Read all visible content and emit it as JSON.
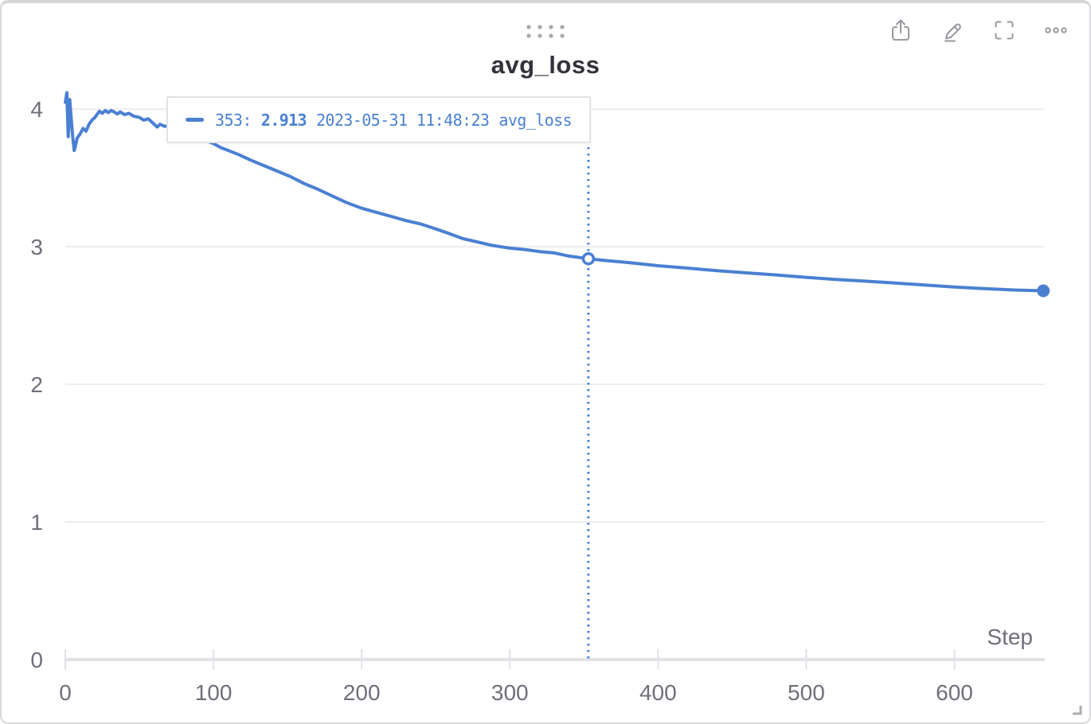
{
  "panel": {
    "title": "avg_loss"
  },
  "toolbar": {
    "icons": [
      "share",
      "edit",
      "fullscreen",
      "more-options"
    ]
  },
  "tooltip": {
    "step_label": "353:",
    "value": "2.913",
    "timestamp": "2023-05-31 11:48:23",
    "series_name": "avg_loss"
  },
  "colors": {
    "accent_blue": "#4a80d2",
    "axis_text": "#6f6f7a",
    "grid_line": "#ededf0",
    "axis_line": "#e3e3e7",
    "title_text": "#32323a",
    "icon_gray": "#98989f"
  },
  "chart_data": {
    "type": "line",
    "title": "avg_loss",
    "xlabel": "Step",
    "ylabel": "",
    "xlim": [
      0,
      661
    ],
    "ylim": [
      0,
      4.14
    ],
    "x_ticks": [
      0,
      100,
      200,
      300,
      400,
      500,
      600
    ],
    "y_ticks": [
      0,
      1,
      2,
      3,
      4
    ],
    "grid": true,
    "legend_position": "none",
    "series": [
      {
        "name": "avg_loss",
        "color": "#4a80d2",
        "points": [
          [
            0,
            4.05
          ],
          [
            1,
            4.12
          ],
          [
            2,
            3.8
          ],
          [
            3,
            4.07
          ],
          [
            4,
            3.93
          ],
          [
            5,
            3.8
          ],
          [
            6,
            3.7
          ],
          [
            7,
            3.74
          ],
          [
            8,
            3.79
          ],
          [
            10,
            3.82
          ],
          [
            12,
            3.86
          ],
          [
            14,
            3.84
          ],
          [
            16,
            3.89
          ],
          [
            18,
            3.92
          ],
          [
            20,
            3.94
          ],
          [
            23,
            3.985
          ],
          [
            25,
            3.97
          ],
          [
            27,
            3.99
          ],
          [
            29,
            3.975
          ],
          [
            31,
            3.99
          ],
          [
            33,
            3.98
          ],
          [
            35,
            3.965
          ],
          [
            37,
            3.98
          ],
          [
            40,
            3.96
          ],
          [
            43,
            3.97
          ],
          [
            46,
            3.95
          ],
          [
            50,
            3.94
          ],
          [
            53,
            3.92
          ],
          [
            56,
            3.93
          ],
          [
            59,
            3.9
          ],
          [
            62,
            3.87
          ],
          [
            64,
            3.89
          ],
          [
            67,
            3.875
          ],
          [
            70,
            3.88
          ],
          [
            74,
            3.86
          ],
          [
            78,
            3.85
          ],
          [
            82,
            3.83
          ],
          [
            86,
            3.81
          ],
          [
            90,
            3.79
          ],
          [
            95,
            3.77
          ],
          [
            100,
            3.75
          ],
          [
            105,
            3.72
          ],
          [
            110,
            3.7
          ],
          [
            117,
            3.67
          ],
          [
            125,
            3.63
          ],
          [
            134,
            3.59
          ],
          [
            143,
            3.55
          ],
          [
            152,
            3.51
          ],
          [
            161,
            3.46
          ],
          [
            170,
            3.42
          ],
          [
            180,
            3.37
          ],
          [
            190,
            3.32
          ],
          [
            200,
            3.28
          ],
          [
            210,
            3.25
          ],
          [
            220,
            3.22
          ],
          [
            230,
            3.19
          ],
          [
            240,
            3.165
          ],
          [
            250,
            3.13
          ],
          [
            258,
            3.1
          ],
          [
            268,
            3.06
          ],
          [
            278,
            3.035
          ],
          [
            288,
            3.01
          ],
          [
            300,
            2.99
          ],
          [
            310,
            2.98
          ],
          [
            320,
            2.965
          ],
          [
            330,
            2.955
          ],
          [
            340,
            2.932
          ],
          [
            353,
            2.913
          ],
          [
            365,
            2.9
          ],
          [
            380,
            2.885
          ],
          [
            400,
            2.862
          ],
          [
            420,
            2.845
          ],
          [
            440,
            2.826
          ],
          [
            460,
            2.81
          ],
          [
            480,
            2.795
          ],
          [
            500,
            2.778
          ],
          [
            520,
            2.762
          ],
          [
            540,
            2.75
          ],
          [
            560,
            2.736
          ],
          [
            580,
            2.722
          ],
          [
            600,
            2.707
          ],
          [
            620,
            2.696
          ],
          [
            640,
            2.686
          ],
          [
            660,
            2.68
          ]
        ]
      }
    ],
    "highlight_point": {
      "step": 353,
      "value": 2.913,
      "marker": "open-circle",
      "spike_line": "dotted-vertical"
    },
    "end_point": {
      "step": 660,
      "value": 2.68,
      "marker": "filled-circle"
    }
  }
}
